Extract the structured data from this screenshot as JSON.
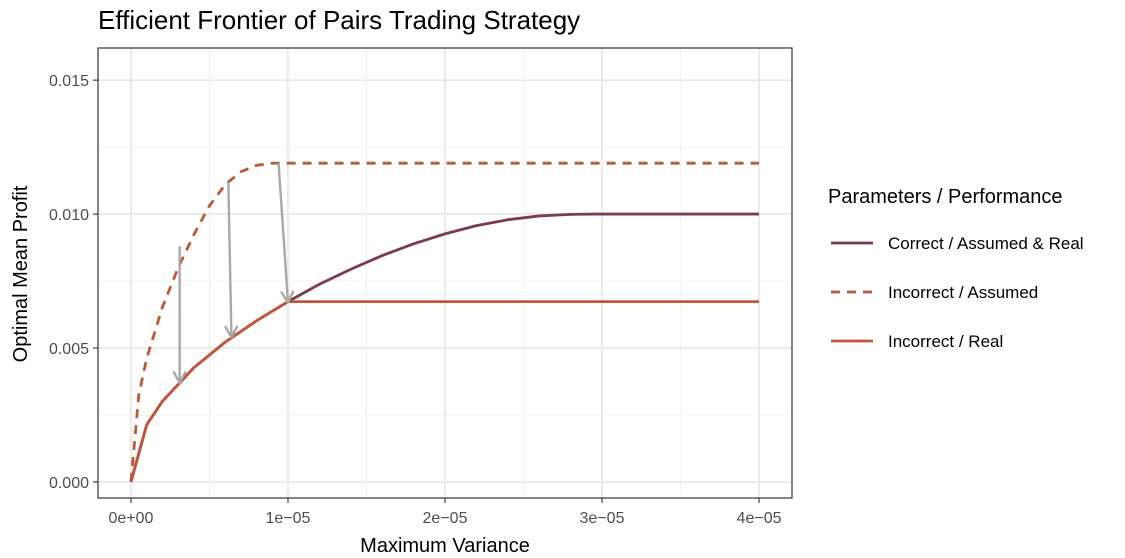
{
  "chart_data": {
    "type": "line",
    "title": "Efficient Frontier of Pairs Trading Strategy",
    "xlabel": "Maximum Variance",
    "ylabel": "Optimal Mean Profit",
    "xlim": [
      -2.1e-06,
      4.21e-05
    ],
    "ylim": [
      -0.0006,
      0.0162
    ],
    "x_ticks": [
      0,
      1e-05,
      2e-05,
      3e-05,
      4e-05
    ],
    "x_tick_labels": [
      "0e+00",
      "1e−05",
      "2e−05",
      "3e−05",
      "4e−05"
    ],
    "y_ticks": [
      0,
      0.005,
      0.01,
      0.015
    ],
    "y_tick_labels": [
      "0.000",
      "0.005",
      "0.010",
      "0.015"
    ],
    "grid": true,
    "legend_title": "Parameters / Performance",
    "legend_position": "right",
    "series": [
      {
        "name": "Correct / Assumed & Real",
        "color": "#7a3b4b",
        "dash": "solid",
        "x": [
          0,
          1e-06,
          2e-06,
          4e-06,
          6e-06,
          8e-06,
          1e-05,
          1.2e-05,
          1.4e-05,
          1.6e-05,
          1.8e-05,
          2e-05,
          2.2e-05,
          2.4e-05,
          2.6e-05,
          2.8e-05,
          2.95e-05,
          3.2e-05,
          3.5e-05,
          3.8e-05,
          4e-05
        ],
        "y": [
          0,
          0.00213,
          0.00301,
          0.00426,
          0.00522,
          0.00602,
          0.00673,
          0.00738,
          0.00794,
          0.00845,
          0.00889,
          0.00926,
          0.00957,
          0.00979,
          0.00993,
          0.00999,
          0.01,
          0.01,
          0.01,
          0.01,
          0.01
        ]
      },
      {
        "name": "Incorrect / Assumed",
        "color": "#b85a3c",
        "dash": "dashed",
        "x": [
          0,
          5e-07,
          1e-06,
          2e-06,
          3e-06,
          4e-06,
          5e-06,
          6e-06,
          7e-06,
          8e-06,
          9e-06,
          9.3e-06,
          1e-05,
          1.5e-05,
          2e-05,
          2.5e-05,
          3e-05,
          3.5e-05,
          4e-05
        ],
        "y": [
          0,
          0.00326,
          0.00461,
          0.00652,
          0.00799,
          0.00922,
          0.01031,
          0.0111,
          0.01158,
          0.01182,
          0.0119,
          0.0119,
          0.0119,
          0.0119,
          0.0119,
          0.0119,
          0.0119,
          0.0119,
          0.0119
        ]
      },
      {
        "name": "Incorrect / Real",
        "color": "#c0563a",
        "dash": "solid",
        "x": [
          0,
          1e-06,
          2e-06,
          4e-06,
          6e-06,
          8e-06,
          1e-05,
          1.5e-05,
          2e-05,
          2.5e-05,
          3e-05,
          3.5e-05,
          4e-05
        ],
        "y": [
          0,
          0.00213,
          0.00301,
          0.00426,
          0.00522,
          0.00602,
          0.00673,
          0.00673,
          0.00673,
          0.00673,
          0.00673,
          0.00673,
          0.00673
        ]
      }
    ],
    "arrows": {
      "color": "#a8a8a8",
      "items": [
        {
          "x1": 3.1e-06,
          "y1": 0.0088,
          "x2": 3.1e-06,
          "y2": 0.0037
        },
        {
          "x1": 6.2e-06,
          "y1": 0.0112,
          "x2": 6.4e-06,
          "y2": 0.0054
        },
        {
          "x1": 9.4e-06,
          "y1": 0.0119,
          "x2": 1e-05,
          "y2": 0.0067
        }
      ]
    }
  }
}
